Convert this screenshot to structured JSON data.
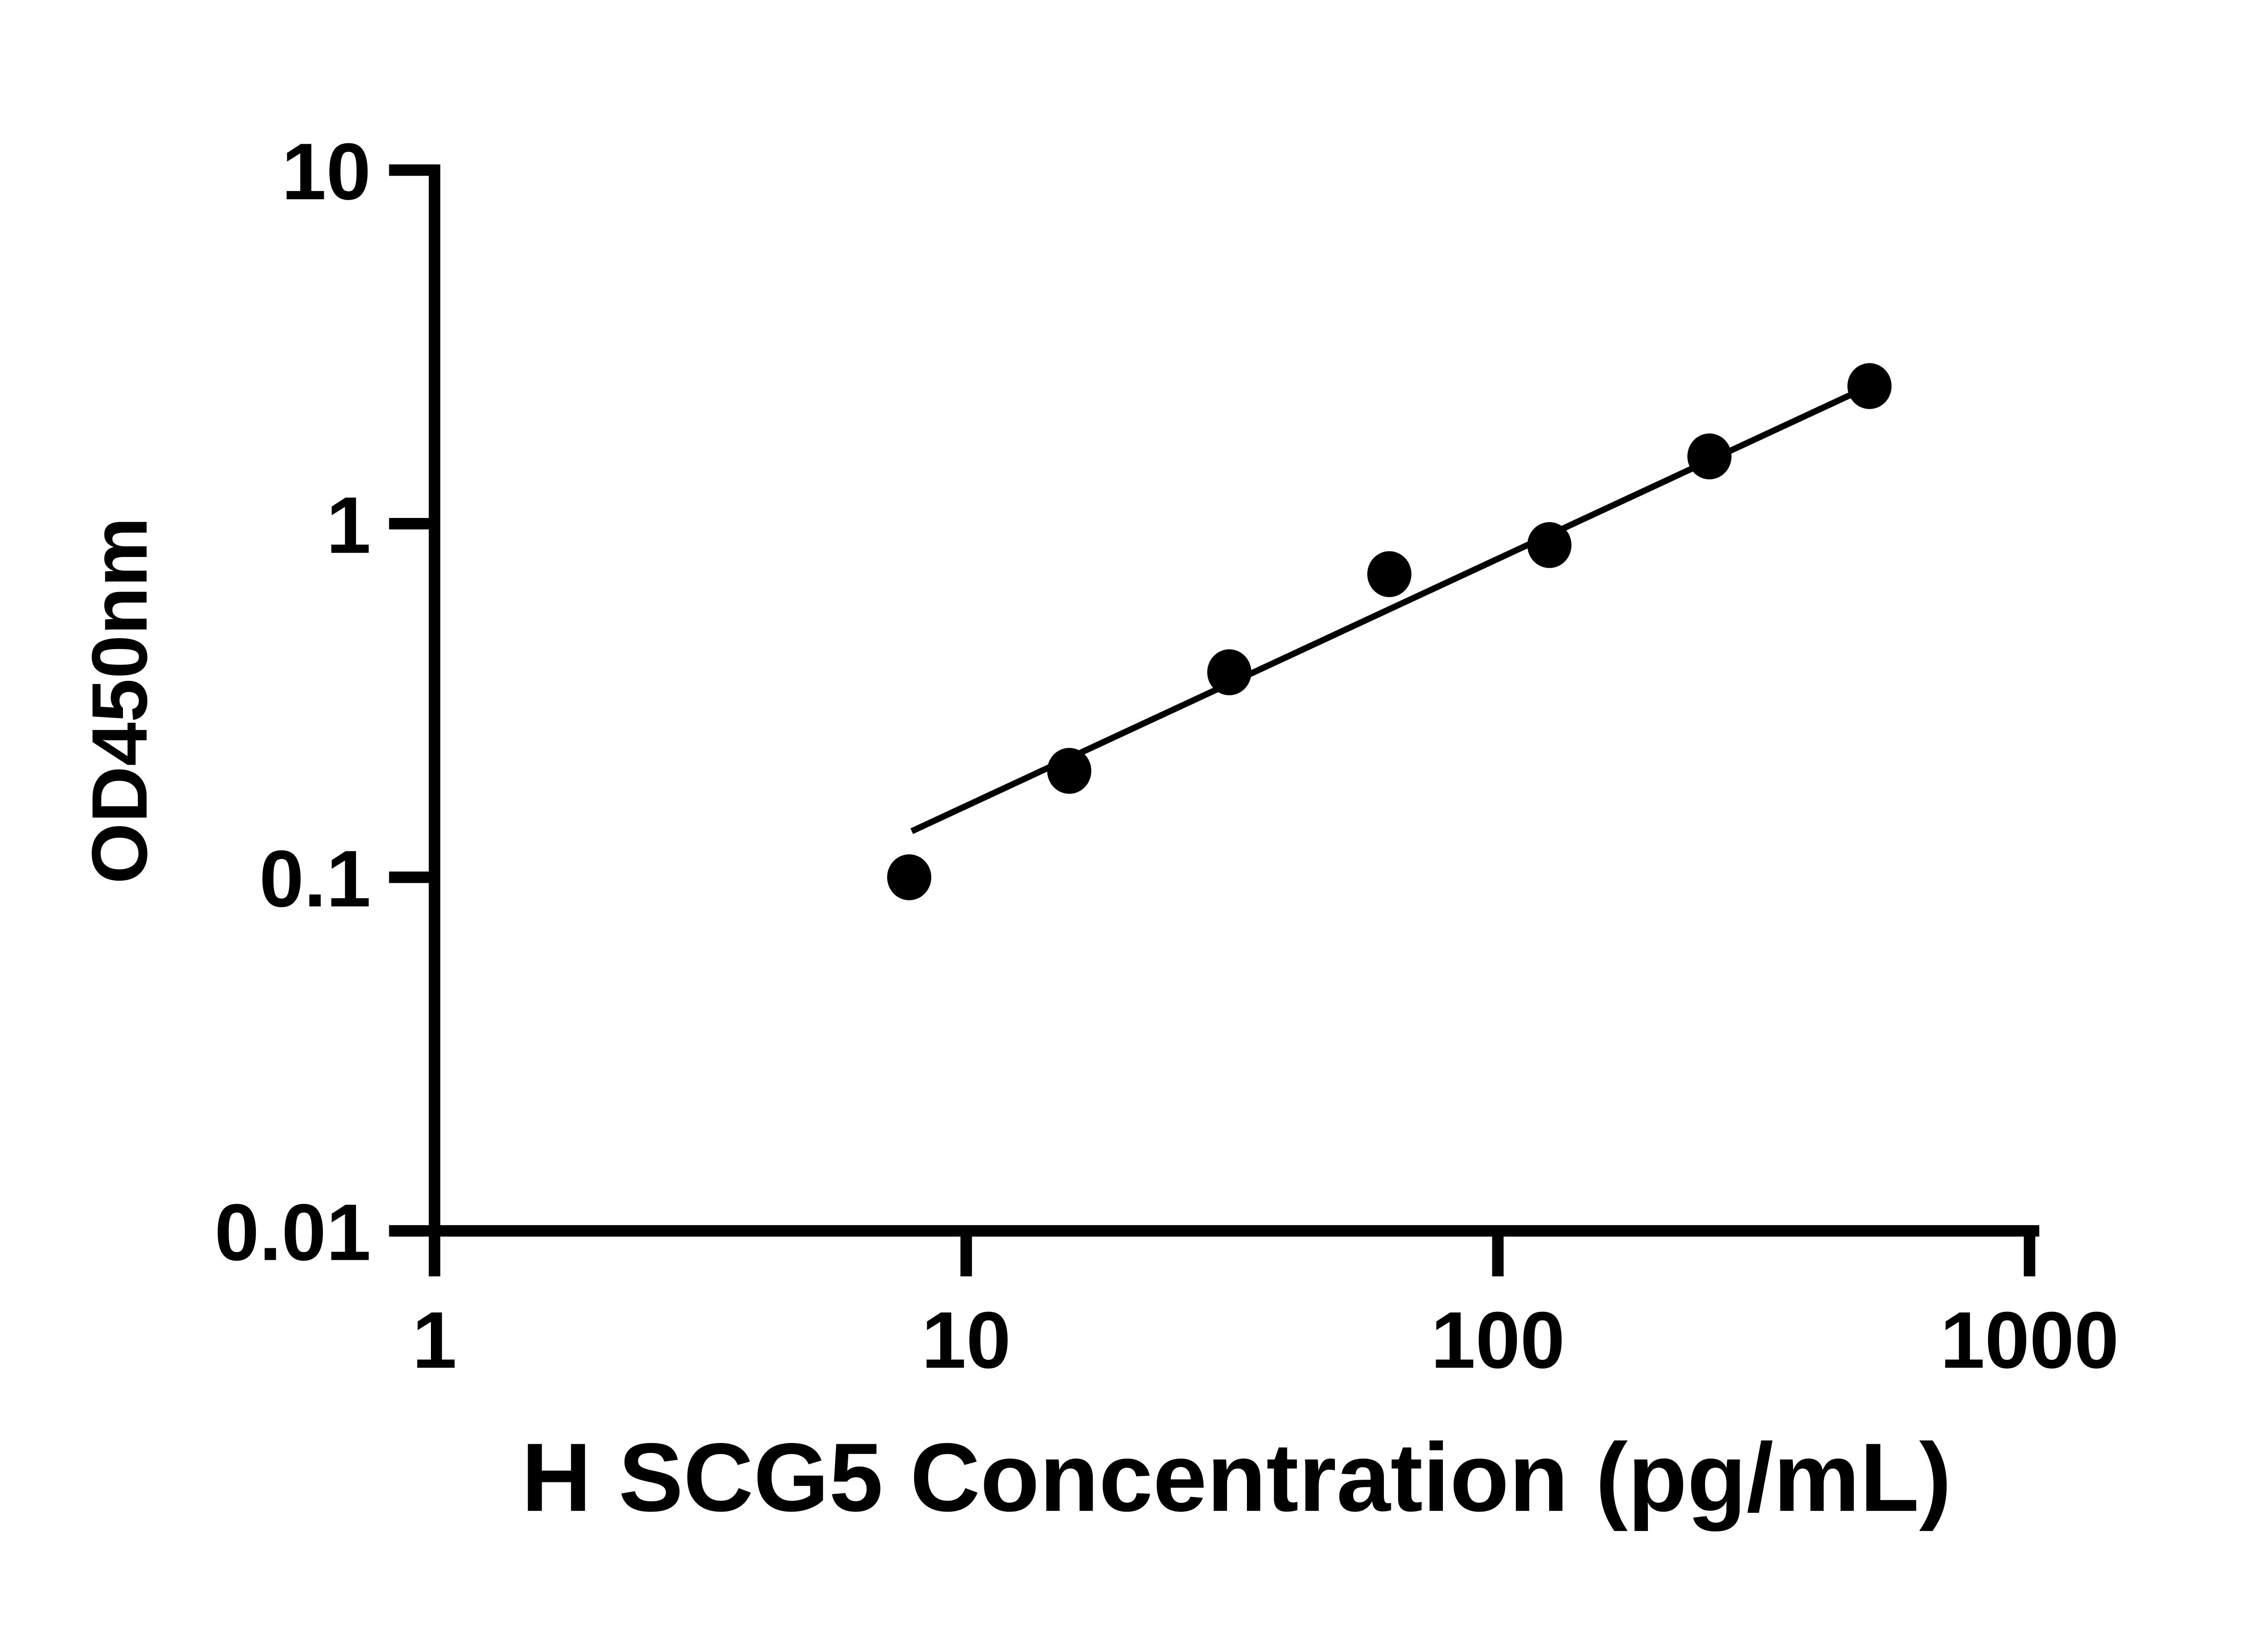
{
  "figure": {
    "background_color": "#ffffff",
    "ink_color": "#000000",
    "description": "ELISA standard curve scatter plot with log-log axes and a straight fit line"
  },
  "chart_data": {
    "type": "scatter",
    "title": "",
    "xlabel": "H SCG5 Concentration (pg/mL)",
    "ylabel": "OD450nm",
    "x_scale": "log10",
    "y_scale": "log10",
    "xlim": [
      1,
      1000
    ],
    "ylim": [
      0.01,
      10
    ],
    "x_ticks": [
      1,
      10,
      100,
      1000
    ],
    "y_ticks": [
      0.01,
      0.1,
      1,
      10
    ],
    "grid": false,
    "legend": "none",
    "marker": {
      "shape": "filled-circle",
      "color": "#000000"
    },
    "points": [
      {
        "x": 7.8125,
        "y": 0.1
      },
      {
        "x": 15.625,
        "y": 0.2
      },
      {
        "x": 31.25,
        "y": 0.38
      },
      {
        "x": 62.5,
        "y": 0.72
      },
      {
        "x": 125,
        "y": 0.87
      },
      {
        "x": 250,
        "y": 1.55
      },
      {
        "x": 500,
        "y": 2.45
      }
    ],
    "fit_line": {
      "shape": "straight-on-loglog",
      "x_start": 7.9,
      "y_start": 0.135,
      "x_end": 500,
      "y_end": 2.45
    }
  }
}
